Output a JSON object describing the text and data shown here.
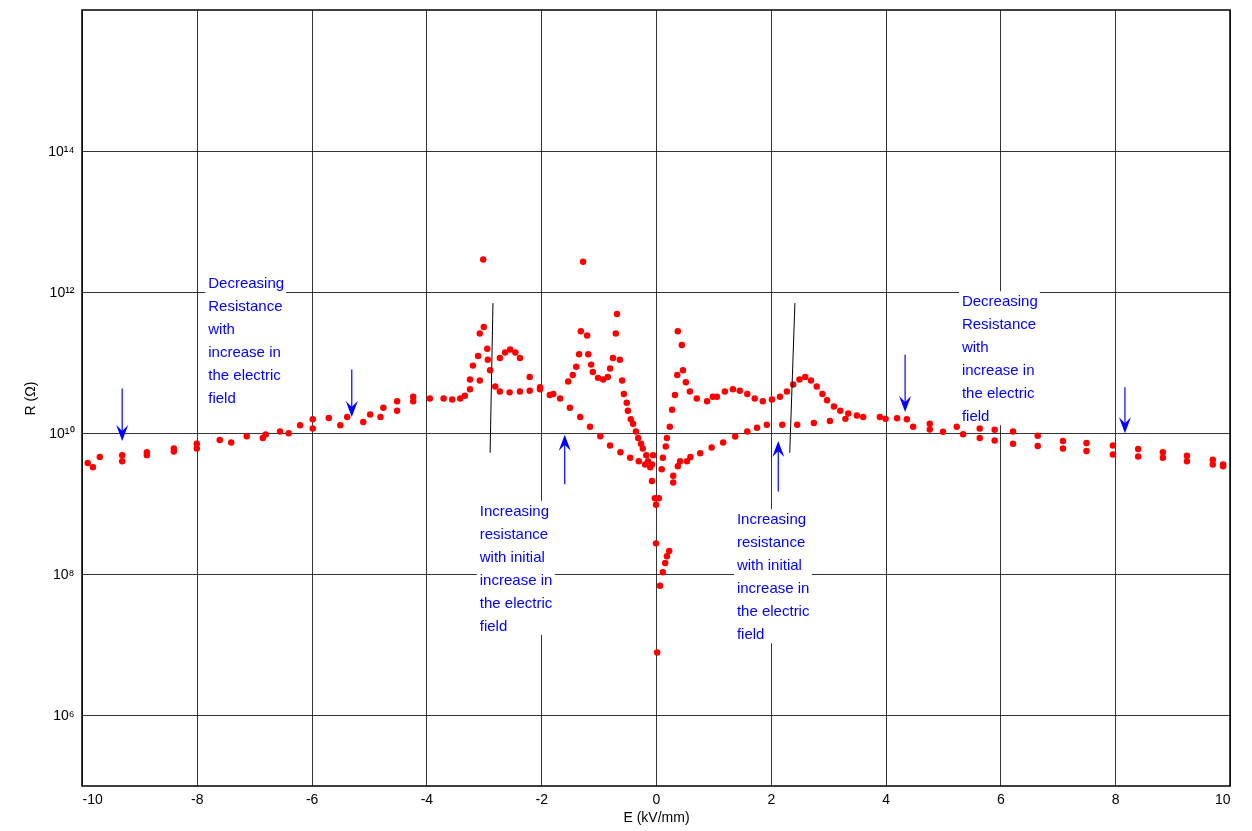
{
  "chart_data": {
    "type": "scatter",
    "xlabel": "E (kV/mm)",
    "ylabel": "R (Ω)",
    "log": "y",
    "grid": true,
    "marker": "circle",
    "xlim": [
      -10,
      10
    ],
    "xticks": [
      -10,
      -8,
      -6,
      -4,
      -2,
      0,
      2,
      4,
      6,
      8,
      10
    ],
    "ylim": [
      100000.0,
      1e+16
    ],
    "yticks": [
      {
        "value": 1000000.0,
        "label": "10⁶"
      },
      {
        "value": 100000000.0,
        "label": "10⁸"
      },
      {
        "value": 10000000000.0,
        "label": "10¹⁰"
      },
      {
        "value": 1000000000000.0,
        "label": "10¹²"
      },
      {
        "value": 100000000000000.0,
        "label": "10¹⁴"
      }
    ],
    "annotations": [
      "Decreasing\nResistance\nwith\nincrease in\nthe electric\nfield",
      "Decreasing\nResistance\nwith\nincrease in\nthe electric\nfield",
      "Increasing\nresistance\nwith initial\nincrease in\nthe electric\nfield",
      "Increasing\nresistance\nwith initial\nincrease in\nthe electric\nfield"
    ],
    "series": [
      {
        "type": "line",
        "color": "#000000",
        "marker": "none",
        "x": [
          -2.84,
          -2.89
        ],
        "values": [
          700000000000.0,
          5300000000.0
        ]
      },
      {
        "type": "line",
        "color": "#000000",
        "marker": "none",
        "x": [
          2.42,
          2.33
        ],
        "values": [
          700000000000.0,
          5300000000.0
        ]
      },
      {
        "color": "#ff0000",
        "x": [
          -9.9,
          -9.81,
          -9.3,
          -8.87,
          -8.4,
          -8.0,
          -7.4,
          -6.85,
          -6.4,
          -5.98,
          -5.5,
          -5.1,
          -4.8,
          -4.51,
          -4.23,
          -3.94,
          -9.69,
          -9.3,
          -8.87,
          -8.4,
          -8.0,
          -7.6,
          -7.13,
          -6.8,
          -6.55,
          -6.2,
          -5.98,
          -5.7,
          -5.38,
          -4.98,
          -4.75,
          -4.51,
          -4.23,
          -3.7,
          -3.55,
          -3.41,
          -3.33,
          -3.24,
          -3.07,
          -2.89,
          -2.72,
          -2.63,
          -2.54,
          -2.45,
          -2.37,
          -2.2,
          -2.02,
          -1.79,
          -1.67,
          -2.8,
          -2.72,
          -2.55,
          -2.37,
          -2.2,
          -2.02,
          -1.85,
          -1.5,
          -1.32,
          -1.15,
          -0.97,
          -0.8,
          -0.62,
          -0.45,
          -0.3,
          -0.19,
          -0.1,
          -3.24,
          -3.19,
          -3.1,
          -2.94,
          -2.93,
          -3.07,
          -3.0,
          -3.01,
          -1.27,
          -1.53,
          -1.45,
          -1.39,
          -1.34,
          -1.31,
          -1.2,
          -1.18,
          -1.13,
          -1.1,
          -1.01,
          -0.92,
          -0.84,
          -0.8,
          -0.75,
          -0.7,
          -0.68,
          -0.63,
          -0.59,
          -0.56,
          -0.51,
          -0.49,
          -0.44,
          -0.4,
          -0.35,
          -0.31,
          -0.26,
          -0.23,
          -0.17,
          -0.14,
          -0.07,
          -0.05,
          0.38,
          0.45,
          0.47,
          0.52,
          0.37,
          0.33,
          0.28,
          0.24,
          0.19,
          0.17,
          0.12,
          0.1,
          -0.07,
          -0.02,
          0.05,
          0.0,
          0.0,
          0.23,
          0.19,
          0.16,
          0.12,
          0.07,
          0.02,
          0.3,
          0.3,
          0.38,
          0.54,
          0.77,
          0.59,
          0.71,
          0.89,
          0.99,
          1.06,
          1.2,
          1.34,
          1.46,
          1.59,
          1.72,
          1.86,
          2.02,
          2.16,
          2.28,
          2.39,
          2.5,
          2.6,
          2.7,
          2.8,
          2.9,
          2.98,
          3.1,
          3.21,
          3.35,
          3.5,
          3.9,
          0.42,
          0.6,
          0.97,
          1.17,
          1.38,
          1.59,
          1.76,
          1.93,
          2.2,
          2.46,
          2.75,
          3.03,
          3.3,
          3.61,
          4.2,
          4.0,
          4.37,
          4.77,
          5.24,
          5.64,
          5.9,
          6.22,
          6.65,
          7.09,
          7.5,
          7.96,
          8.4,
          8.83,
          9.25,
          9.7,
          9.88,
          4.48,
          4.77,
          5.0,
          5.35,
          5.64,
          5.9,
          6.22,
          6.65,
          7.09,
          7.5,
          7.96,
          8.4,
          8.83,
          9.25,
          9.7,
          9.88
        ],
        "values": [
          3800000000.0,
          3300000000.0,
          4000000000.0,
          4900000000.0,
          5500000000.0,
          6100000000.0,
          7400000000.0,
          8600000000.0,
          10000000000.0,
          11700000000.0,
          13000000000.0,
          14500000000.0,
          17000000000.0,
          20900000000.0,
          28400000000.0,
          31000000000.0,
          4600000000.0,
          4900000000.0,
          5400000000.0,
          6100000000.0,
          7100000000.0,
          8000000000.0,
          9100000000.0,
          9600000000.0,
          10600000000.0,
          13000000000.0,
          15800000000.0,
          16500000000.0,
          17000000000.0,
          18500000000.0,
          23000000000.0,
          28400000000.0,
          33000000000.0,
          31000000000.0,
          30000000000.0,
          31000000000.0,
          34000000000.0,
          42000000000.0,
          56000000000.0,
          78000000000.0,
          117000000000.0,
          140000000000.0,
          154000000000.0,
          140000000000.0,
          117000000000.0,
          63000000000.0,
          45000000000.0,
          36000000000.0,
          31000000000.0,
          46000000000.0,
          39000000000.0,
          38000000000.0,
          39000000000.0,
          40000000000.0,
          42000000000.0,
          35000000000.0,
          23000000000.0,
          17000000000.0,
          12400000000.0,
          9100000000.0,
          6700000000.0,
          5400000000.0,
          4500000000.0,
          4000000000.0,
          3600000000.0,
          3300000000.0,
          58000000000.0,
          91000000000.0,
          125000000000.0,
          158000000000.0,
          110000000000.0,
          260000000000.0,
          320000000000.0,
          2900000000000.0,
          2700000000000.0,
          54000000000.0,
          67000000000.0,
          88000000000.0,
          132000000000.0,
          280000000000.0,
          244000000000.0,
          132000000000.0,
          94000000000.0,
          74000000000.0,
          61000000000.0,
          58000000000.0,
          63000000000.0,
          83000000000.0,
          117000000000.0,
          260000000000.0,
          490000000000.0,
          110000000000.0,
          56000000000.0,
          36000000000.0,
          27000000000.0,
          20900000000.0,
          15800000000.0,
          13600000000.0,
          10600000000.0,
          8600000000.0,
          7100000000.0,
          6100000000.0,
          4900000000.0,
          4000000000.0,
          3600000000.0,
          4900000000.0,
          280000000000.0,
          179000000000.0,
          78000000000.0,
          53000000000.0,
          67000000000.0,
          35000000000.0,
          21500000000.0,
          12400000000.0,
          8600000000.0,
          6500000000.0,
          4500000000.0,
          3100000000.0,
          2100000000.0,
          1200000000.0,
          1200000000.0,
          970000000.0,
          275000000.0,
          215000000.0,
          180000000.0,
          145000000.0,
          107000000.0,
          69000000.0,
          7800000.0,
          2500000000.0,
          2000000000.0,
          3400000000.0,
          4000000000.0,
          5200000000.0,
          39000000000.0,
          31000000000.0,
          28400000000.0,
          33000000000.0,
          33000000000.0,
          39000000000.0,
          42000000000.0,
          40000000000.0,
          36000000000.0,
          31000000000.0,
          28400000000.0,
          30000000000.0,
          33000000000.0,
          39000000000.0,
          49000000000.0,
          58000000000.0,
          63000000000.0,
          56000000000.0,
          46000000000.0,
          36000000000.0,
          29300000000.0,
          24000000000.0,
          20900000000.0,
          19000000000.0,
          17900000000.0,
          17000000000.0,
          4000000000.0,
          4600000000.0,
          6300000000.0,
          7400000000.0,
          9000000000.0,
          10600000000.0,
          12000000000.0,
          13200000000.0,
          13200000000.0,
          13200000000.0,
          14000000000.0,
          14900000000.0,
          16000000000.0,
          17000000000.0,
          16300000000.0,
          16000000000.0,
          15800000000.0,
          13600000000.0,
          12400000000.0,
          11700000000.0,
          11200000000.0,
          10600000000.0,
          9200000000.0,
          7800000000.0,
          7300000000.0,
          6700000000.0,
          6000000000.0,
          5400000000.0,
          4800000000.0,
          4200000000.0,
          3400000000.0,
          12400000000.0,
          11300000000.0,
          10500000000.0,
          9700000000.0,
          8600000000.0,
          7900000000.0,
          7100000000.0,
          6600000000.0,
          6100000000.0,
          5600000000.0,
          5000000000.0,
          4700000000.0,
          4500000000.0,
          4000000000.0,
          3600000000.0,
          3600000000.0
        ]
      }
    ]
  }
}
